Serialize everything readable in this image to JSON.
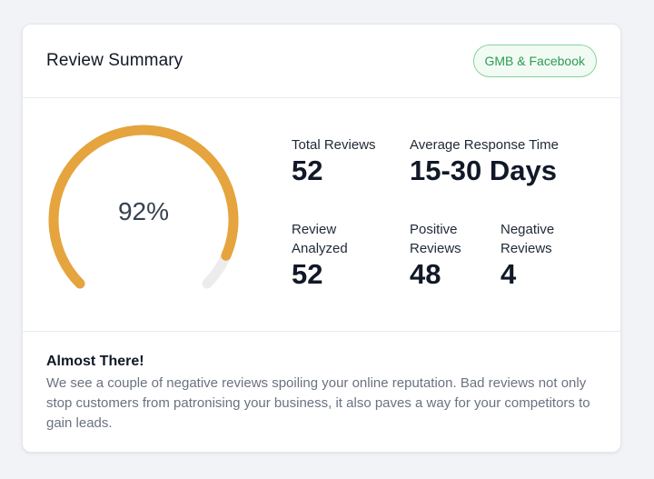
{
  "card": {
    "title": "Review Summary",
    "source_badge": "GMB & Facebook"
  },
  "gauge": {
    "value_text": "92%",
    "percent": 92,
    "colors": {
      "fill": "#e5a43d",
      "track": "#ececec"
    }
  },
  "stats": {
    "total_reviews": {
      "label": "Total Reviews",
      "value": "52"
    },
    "avg_response_time": {
      "label": "Average Response Time",
      "value": "15-30 Days"
    },
    "reviews_analyzed": {
      "label_line1": "Review",
      "label_line2": "Analyzed",
      "value": "52"
    },
    "positive_reviews": {
      "label_line1": "Positive",
      "label_line2": "Reviews",
      "value": "48"
    },
    "negative_reviews": {
      "label_line1": "Negative",
      "label_line2": "Reviews",
      "value": "4"
    }
  },
  "message": {
    "title": "Almost There!",
    "body": "We see a couple of negative reviews spoiling your online reputation. Bad reviews not only stop customers from patronising your business, it also paves a way for your competitors to gain leads."
  }
}
